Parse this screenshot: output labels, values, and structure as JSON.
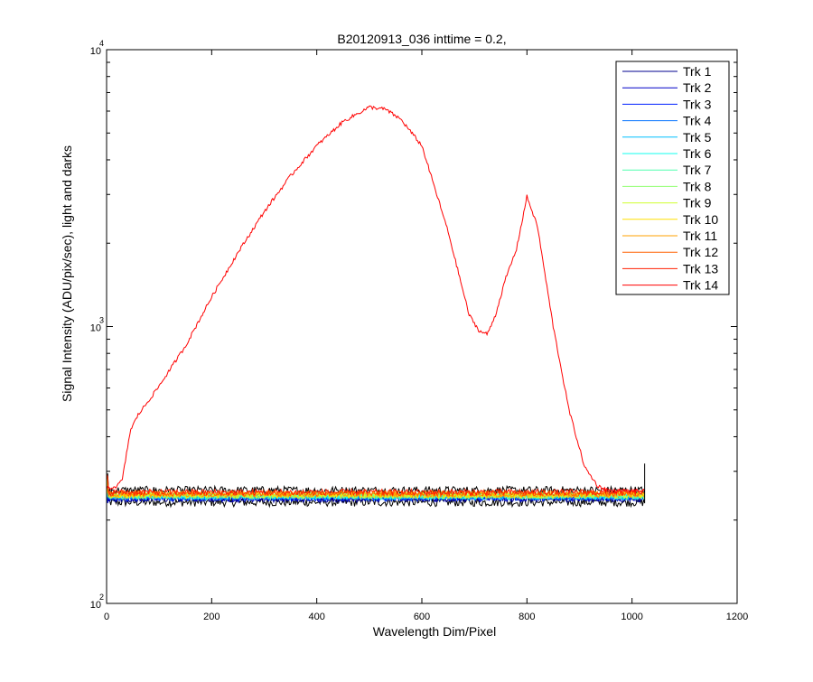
{
  "chart_data": {
    "type": "line",
    "title": "B20120913_036 inttime = 0.2,",
    "xlabel": "Wavelength Dim/Pixel",
    "ylabel": "Signal Intensity (ADU/pix/sec), light and darks",
    "xlim": [
      0,
      1200
    ],
    "ylim": [
      100,
      10000
    ],
    "y_scale": "log",
    "x_ticks": [
      0,
      200,
      400,
      600,
      800,
      1000,
      1200
    ],
    "x_tick_labels": [
      "0",
      "200",
      "400",
      "600",
      "800",
      "1000",
      "1200"
    ],
    "y_ticks": [
      {
        "value": 100,
        "base": "10",
        "exp": "2"
      },
      {
        "value": 1000,
        "base": "10",
        "exp": "3"
      },
      {
        "value": 10000,
        "base": "10",
        "exp": "4"
      }
    ],
    "grid": false,
    "legend_position": "top-right",
    "series": [
      {
        "name": "Trk 1",
        "color": "#00008F",
        "baseline": 238
      },
      {
        "name": "Trk 2",
        "color": "#0000C8",
        "baseline": 240
      },
      {
        "name": "Trk 3",
        "color": "#0020FF",
        "baseline": 241
      },
      {
        "name": "Trk 4",
        "color": "#0070FF",
        "baseline": 242
      },
      {
        "name": "Trk 5",
        "color": "#00C0FF",
        "baseline": 243
      },
      {
        "name": "Trk 6",
        "color": "#10FFEF",
        "baseline": 244
      },
      {
        "name": "Trk 7",
        "color": "#50FFAF",
        "baseline": 245
      },
      {
        "name": "Trk 8",
        "color": "#90FF6F",
        "baseline": 245
      },
      {
        "name": "Trk 9",
        "color": "#D0FF2F",
        "baseline": 246
      },
      {
        "name": "Trk 10",
        "color": "#FFE000",
        "baseline": 247
      },
      {
        "name": "Trk 11",
        "color": "#FFA000",
        "baseline": 248
      },
      {
        "name": "Trk 12",
        "color": "#FF6000",
        "baseline": 250
      },
      {
        "name": "Trk 13",
        "color": "#FF2000",
        "baseline": 252
      },
      {
        "name": "Trk 14",
        "color": "#FF0000",
        "x": [
          0,
          20,
          30,
          45,
          60,
          80,
          100,
          150,
          200,
          250,
          300,
          350,
          400,
          450,
          500,
          530,
          560,
          600,
          650,
          690,
          710,
          725,
          740,
          760,
          780,
          800,
          820,
          850,
          880,
          910,
          935,
          960,
          1000,
          1024
        ],
        "y": [
          260,
          265,
          280,
          420,
          480,
          540,
          610,
          850,
          1280,
          1850,
          2600,
          3500,
          4500,
          5500,
          6200,
          6100,
          5600,
          4500,
          2200,
          1100,
          960,
          940,
          1100,
          1500,
          1900,
          2950,
          2300,
          1000,
          500,
          310,
          265,
          255,
          255,
          255
        ]
      }
    ],
    "dark_lines": [
      {
        "name": "",
        "color": "#000000",
        "baseline": 232
      },
      {
        "name": "",
        "color": "#000000",
        "baseline": 256
      }
    ]
  }
}
